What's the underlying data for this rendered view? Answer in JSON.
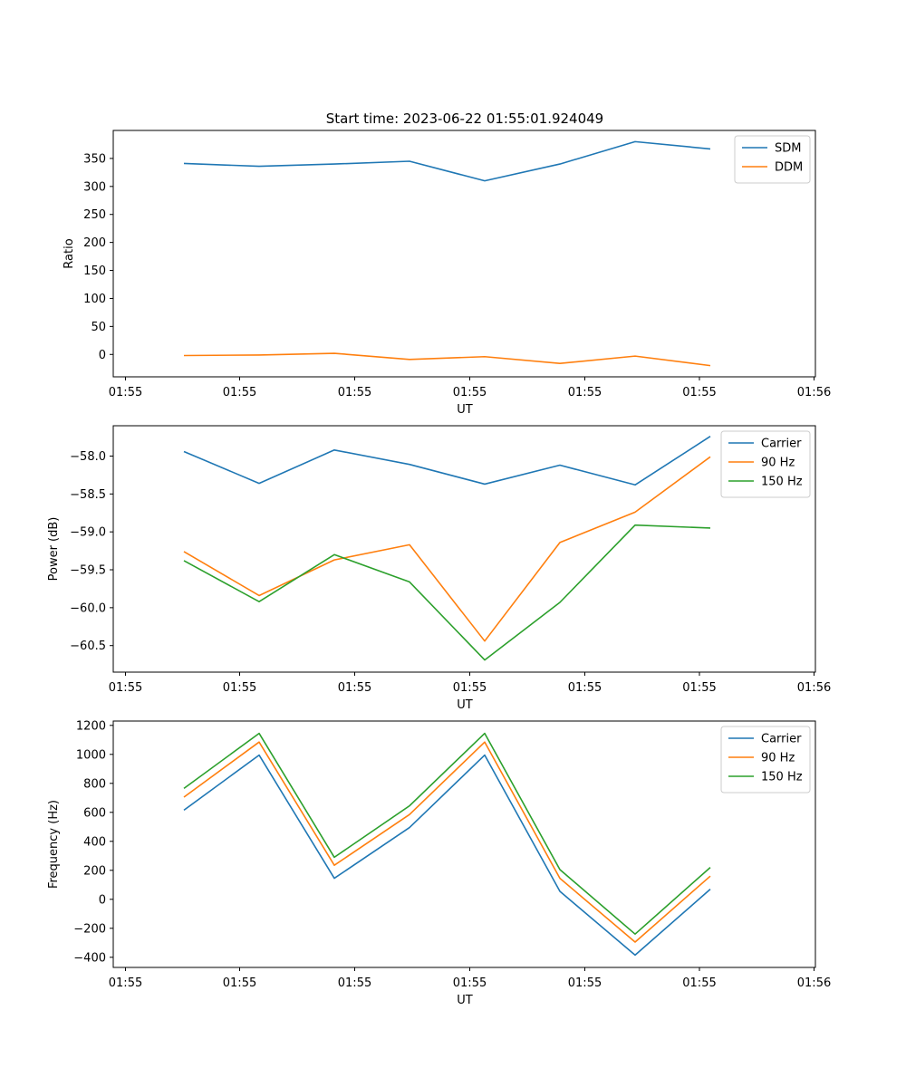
{
  "figure": {
    "title": "Start time: 2023-06-22 01:55:01.924049"
  },
  "chart_data": [
    {
      "type": "line",
      "xlabel": "UT",
      "ylabel": "Ratio",
      "x_tick_labels": [
        "01:55",
        "01:55",
        "01:55",
        "01:55",
        "01:55",
        "01:55",
        "01:55",
        "01:56"
      ],
      "x": [
        1,
        2,
        3,
        4,
        5,
        6,
        7,
        8
      ],
      "xlim": [
        0.0,
        9.2
      ],
      "ylim": [
        -40,
        400
      ],
      "yticks": [
        0,
        50,
        100,
        150,
        200,
        250,
        300,
        350
      ],
      "legend": "top-right",
      "grid": false,
      "series": [
        {
          "name": "SDM",
          "color": "#1f77b4",
          "values": [
            341,
            336,
            340,
            345,
            310,
            340,
            380,
            367
          ]
        },
        {
          "name": "DDM",
          "color": "#ff7f0e",
          "values": [
            -2,
            -1,
            2,
            -9,
            -4,
            -16,
            -3,
            -20
          ]
        }
      ]
    },
    {
      "type": "line",
      "xlabel": "UT",
      "ylabel": "Power (dB)",
      "x_tick_labels": [
        "01:55",
        "01:55",
        "01:55",
        "01:55",
        "01:55",
        "01:55",
        "01:55",
        "01:56"
      ],
      "x": [
        1,
        2,
        3,
        4,
        5,
        6,
        7,
        8
      ],
      "xlim": [
        0.0,
        9.2
      ],
      "ylim": [
        -60.85,
        -57.6
      ],
      "yticks": [
        -60.5,
        -60.0,
        -59.5,
        -59.0,
        -58.5,
        -58.0
      ],
      "ytick_labels": [
        "−60.5",
        "−60.0",
        "−59.5",
        "−59.0",
        "−58.5",
        "−58.0"
      ],
      "legend": "top-right",
      "grid": false,
      "series": [
        {
          "name": "Carrier",
          "color": "#1f77b4",
          "values": [
            -57.94,
            -58.36,
            -57.92,
            -58.11,
            -58.37,
            -58.12,
            -58.38,
            -57.74
          ]
        },
        {
          "name": "90 Hz",
          "color": "#ff7f0e",
          "values": [
            -59.26,
            -59.84,
            -59.37,
            -59.17,
            -60.44,
            -59.14,
            -58.74,
            -58.01
          ]
        },
        {
          "name": "150 Hz",
          "color": "#2ca02c",
          "values": [
            -59.38,
            -59.92,
            -59.3,
            -59.66,
            -60.69,
            -59.93,
            -58.91,
            -58.95
          ]
        }
      ]
    },
    {
      "type": "line",
      "xlabel": "UT",
      "ylabel": "Frequency (Hz)",
      "x_tick_labels": [
        "01:55",
        "01:55",
        "01:55",
        "01:55",
        "01:55",
        "01:55",
        "01:55",
        "01:56"
      ],
      "x": [
        1,
        2,
        3,
        4,
        5,
        6,
        7,
        8
      ],
      "xlim": [
        0.0,
        9.2
      ],
      "ylim": [
        -470,
        1230
      ],
      "yticks": [
        -400,
        -200,
        0,
        200,
        400,
        600,
        800,
        1000,
        1200
      ],
      "ytick_labels": [
        "−400",
        "−200",
        "0",
        "200",
        "400",
        "600",
        "800",
        "1000",
        "1200"
      ],
      "legend": "top-right",
      "grid": false,
      "series": [
        {
          "name": "Carrier",
          "color": "#1f77b4",
          "values": [
            615,
            995,
            145,
            495,
            995,
            55,
            -385,
            70
          ]
        },
        {
          "name": "90 Hz",
          "color": "#ff7f0e",
          "values": [
            705,
            1085,
            235,
            585,
            1085,
            145,
            -295,
            160
          ]
        },
        {
          "name": "150 Hz",
          "color": "#2ca02c",
          "values": [
            765,
            1145,
            290,
            645,
            1145,
            205,
            -240,
            220
          ]
        }
      ]
    }
  ]
}
